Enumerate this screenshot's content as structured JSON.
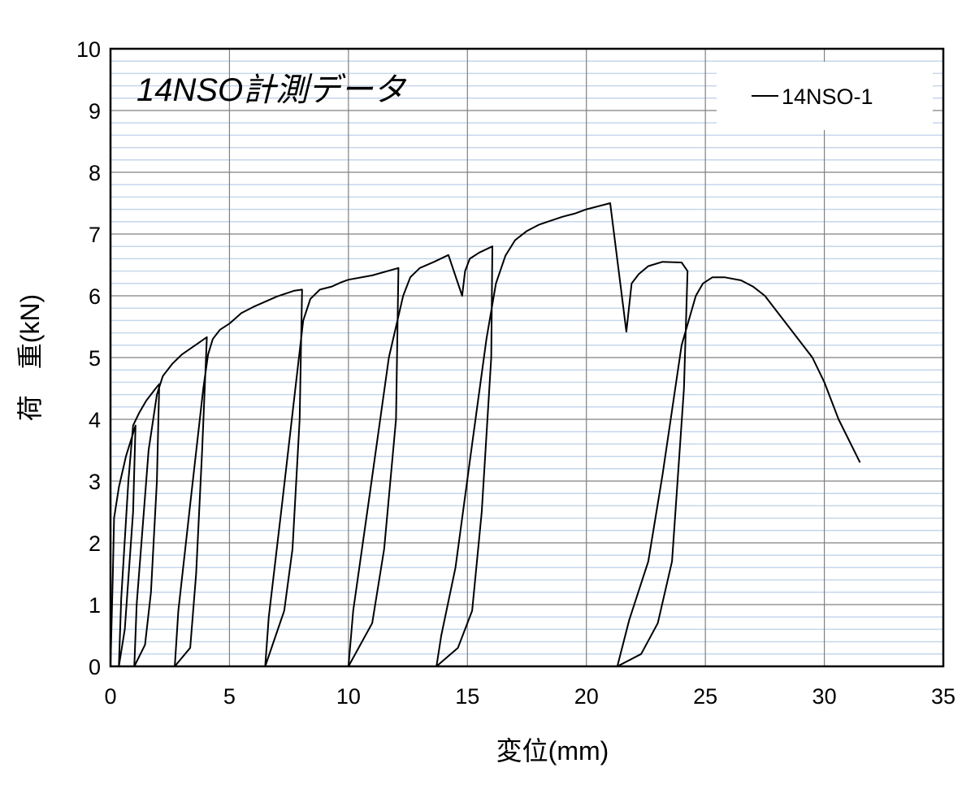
{
  "chart_data": {
    "type": "line",
    "title": "14NSO計測データ",
    "xlabel": "変位(mm)",
    "ylabel": "荷　重(kN)",
    "xlim": [
      0,
      35
    ],
    "ylim": [
      0,
      10
    ],
    "xticks": [
      0,
      5,
      10,
      15,
      20,
      25,
      30,
      35
    ],
    "yticks": [
      0,
      1,
      2,
      3,
      4,
      5,
      6,
      7,
      8,
      9,
      10
    ],
    "grid": {
      "major": true,
      "minor_y_step": 0.2
    },
    "legend_position": "top-right",
    "colors": {
      "line": "#000000",
      "major_grid": "#808080",
      "minor_grid": "#c6d6ec"
    },
    "series": [
      {
        "name": "14NSO-1",
        "points": [
          [
            0,
            0
          ],
          [
            0.1,
            1.5
          ],
          [
            0.15,
            2.4
          ],
          [
            0.35,
            2.9
          ],
          [
            0.65,
            3.4
          ],
          [
            1.05,
            3.9
          ],
          [
            0.95,
            2.5
          ],
          [
            0.6,
            0.6
          ],
          [
            0.35,
            0
          ],
          [
            0.45,
            1.1
          ],
          [
            0.75,
            3.0
          ],
          [
            0.95,
            3.9
          ],
          [
            1.2,
            4.1
          ],
          [
            1.5,
            4.3
          ],
          [
            1.9,
            4.5
          ],
          [
            2.05,
            4.57
          ],
          [
            1.95,
            3.0
          ],
          [
            1.7,
            1.2
          ],
          [
            1.45,
            0.35
          ],
          [
            1.0,
            0
          ],
          [
            1.1,
            1.0
          ],
          [
            1.6,
            3.5
          ],
          [
            1.95,
            4.4
          ],
          [
            2.2,
            4.7
          ],
          [
            2.6,
            4.9
          ],
          [
            3.0,
            5.05
          ],
          [
            4.05,
            5.33
          ],
          [
            3.85,
            3.5
          ],
          [
            3.6,
            1.5
          ],
          [
            3.35,
            0.3
          ],
          [
            2.7,
            0
          ],
          [
            2.85,
            0.9
          ],
          [
            3.4,
            2.8
          ],
          [
            3.9,
            4.5
          ],
          [
            4.1,
            5.05
          ],
          [
            4.3,
            5.3
          ],
          [
            4.6,
            5.45
          ],
          [
            5.0,
            5.55
          ],
          [
            5.5,
            5.72
          ],
          [
            6.0,
            5.82
          ],
          [
            7.0,
            5.99
          ],
          [
            7.7,
            6.08
          ],
          [
            8.05,
            6.1
          ],
          [
            7.95,
            4.0
          ],
          [
            7.65,
            1.9
          ],
          [
            7.3,
            0.9
          ],
          [
            6.5,
            0
          ],
          [
            6.65,
            0.8
          ],
          [
            7.2,
            2.6
          ],
          [
            7.8,
            4.6
          ],
          [
            8.1,
            5.6
          ],
          [
            8.4,
            5.95
          ],
          [
            8.8,
            6.1
          ],
          [
            9.3,
            6.15
          ],
          [
            9.7,
            6.22
          ],
          [
            10.0,
            6.26
          ],
          [
            11.0,
            6.33
          ],
          [
            12.1,
            6.45
          ],
          [
            12.0,
            4.0
          ],
          [
            11.5,
            1.9
          ],
          [
            11.0,
            0.7
          ],
          [
            10.0,
            0
          ],
          [
            10.2,
            0.9
          ],
          [
            10.9,
            2.8
          ],
          [
            11.7,
            5.0
          ],
          [
            12.3,
            6.0
          ],
          [
            12.6,
            6.3
          ],
          [
            13.0,
            6.45
          ],
          [
            13.6,
            6.55
          ],
          [
            14.2,
            6.66
          ],
          [
            14.78,
            6.0
          ],
          [
            14.9,
            6.4
          ],
          [
            15.1,
            6.6
          ],
          [
            15.5,
            6.7
          ],
          [
            16.05,
            6.8
          ],
          [
            16.0,
            5.0
          ],
          [
            15.6,
            2.5
          ],
          [
            15.2,
            0.9
          ],
          [
            14.6,
            0.3
          ],
          [
            13.7,
            0
          ],
          [
            13.9,
            0.5
          ],
          [
            14.5,
            1.6
          ],
          [
            15.2,
            3.6
          ],
          [
            15.8,
            5.3
          ],
          [
            16.2,
            6.2
          ],
          [
            16.6,
            6.65
          ],
          [
            17.0,
            6.9
          ],
          [
            17.5,
            7.05
          ],
          [
            18.0,
            7.15
          ],
          [
            19.0,
            7.28
          ],
          [
            19.5,
            7.33
          ],
          [
            20.0,
            7.4
          ],
          [
            21.0,
            7.5
          ],
          [
            21.68,
            5.42
          ],
          [
            21.9,
            6.2
          ],
          [
            22.2,
            6.35
          ],
          [
            22.6,
            6.48
          ],
          [
            23.2,
            6.55
          ],
          [
            24.0,
            6.54
          ],
          [
            24.25,
            6.4
          ],
          [
            24.1,
            4.5
          ],
          [
            23.6,
            1.7
          ],
          [
            23.0,
            0.7
          ],
          [
            22.3,
            0.2
          ],
          [
            21.3,
            0
          ],
          [
            21.8,
            0.75
          ],
          [
            22.6,
            1.7
          ],
          [
            23.2,
            3.1
          ],
          [
            24.0,
            5.2
          ],
          [
            24.6,
            6.0
          ],
          [
            24.9,
            6.2
          ],
          [
            25.3,
            6.3
          ],
          [
            25.8,
            6.3
          ],
          [
            26.5,
            6.25
          ],
          [
            27.0,
            6.15
          ],
          [
            27.5,
            6.0
          ],
          [
            28.0,
            5.75
          ],
          [
            28.7,
            5.4
          ],
          [
            29.5,
            5.0
          ],
          [
            30.0,
            4.6
          ],
          [
            30.6,
            4.0
          ],
          [
            31.5,
            3.3
          ]
        ]
      }
    ]
  }
}
